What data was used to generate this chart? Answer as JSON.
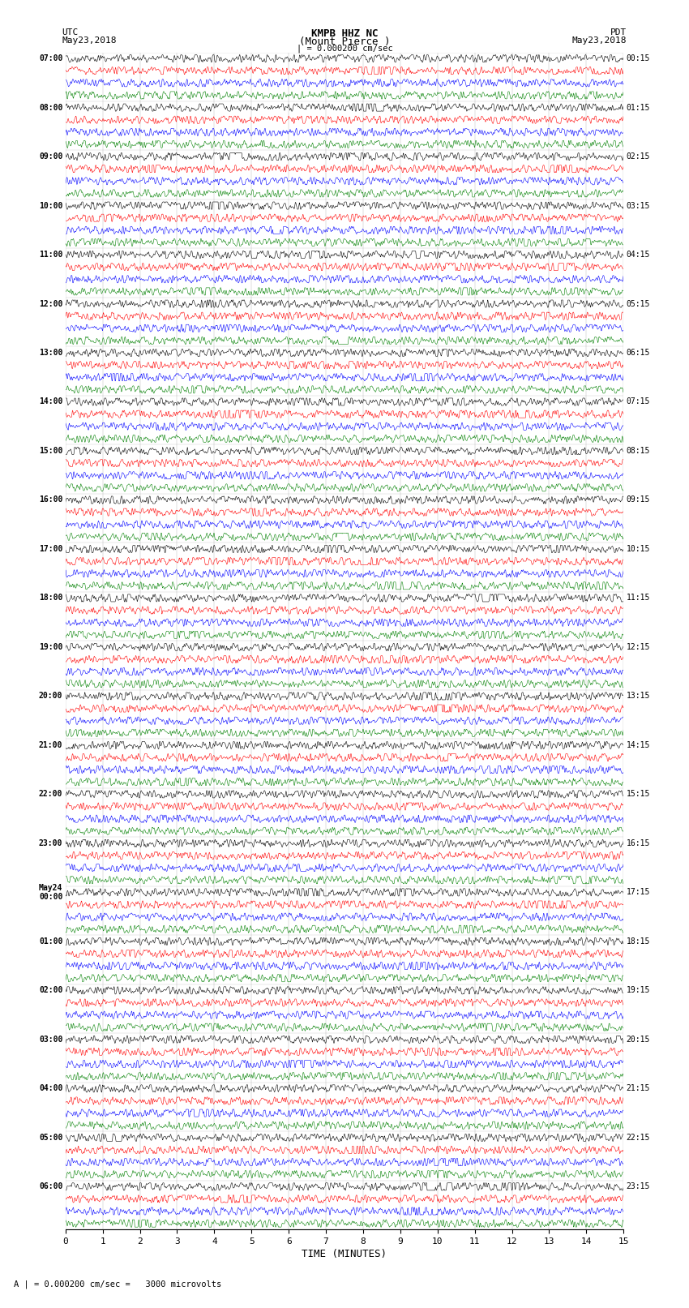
{
  "title_line1": "KMPB HHZ NC",
  "title_line2": "(Mount Pierce )",
  "scale_text": "| = 0.000200 cm/sec",
  "bottom_text": "A | = 0.000200 cm/sec =   3000 microvolts",
  "xlabel": "TIME (MINUTES)",
  "utc_times": [
    "07:00",
    "08:00",
    "09:00",
    "10:00",
    "11:00",
    "12:00",
    "13:00",
    "14:00",
    "15:00",
    "16:00",
    "17:00",
    "18:00",
    "19:00",
    "20:00",
    "21:00",
    "22:00",
    "23:00",
    "May24\n00:00",
    "01:00",
    "02:00",
    "03:00",
    "04:00",
    "05:00",
    "06:00"
  ],
  "pdt_times": [
    "00:15",
    "01:15",
    "02:15",
    "03:15",
    "04:15",
    "05:15",
    "06:15",
    "07:15",
    "08:15",
    "09:15",
    "10:15",
    "11:15",
    "12:15",
    "13:15",
    "14:15",
    "15:15",
    "16:15",
    "17:15",
    "18:15",
    "19:15",
    "20:15",
    "21:15",
    "22:15",
    "23:15"
  ],
  "n_rows": 24,
  "traces_per_row": 4,
  "colors": [
    "black",
    "red",
    "blue",
    "green"
  ],
  "bg_color": "white",
  "xmin": 0,
  "xmax": 15,
  "xticks": [
    0,
    1,
    2,
    3,
    4,
    5,
    6,
    7,
    8,
    9,
    10,
    11,
    12,
    13,
    14,
    15
  ],
  "figwidth": 8.5,
  "figheight": 16.13,
  "dpi": 100
}
